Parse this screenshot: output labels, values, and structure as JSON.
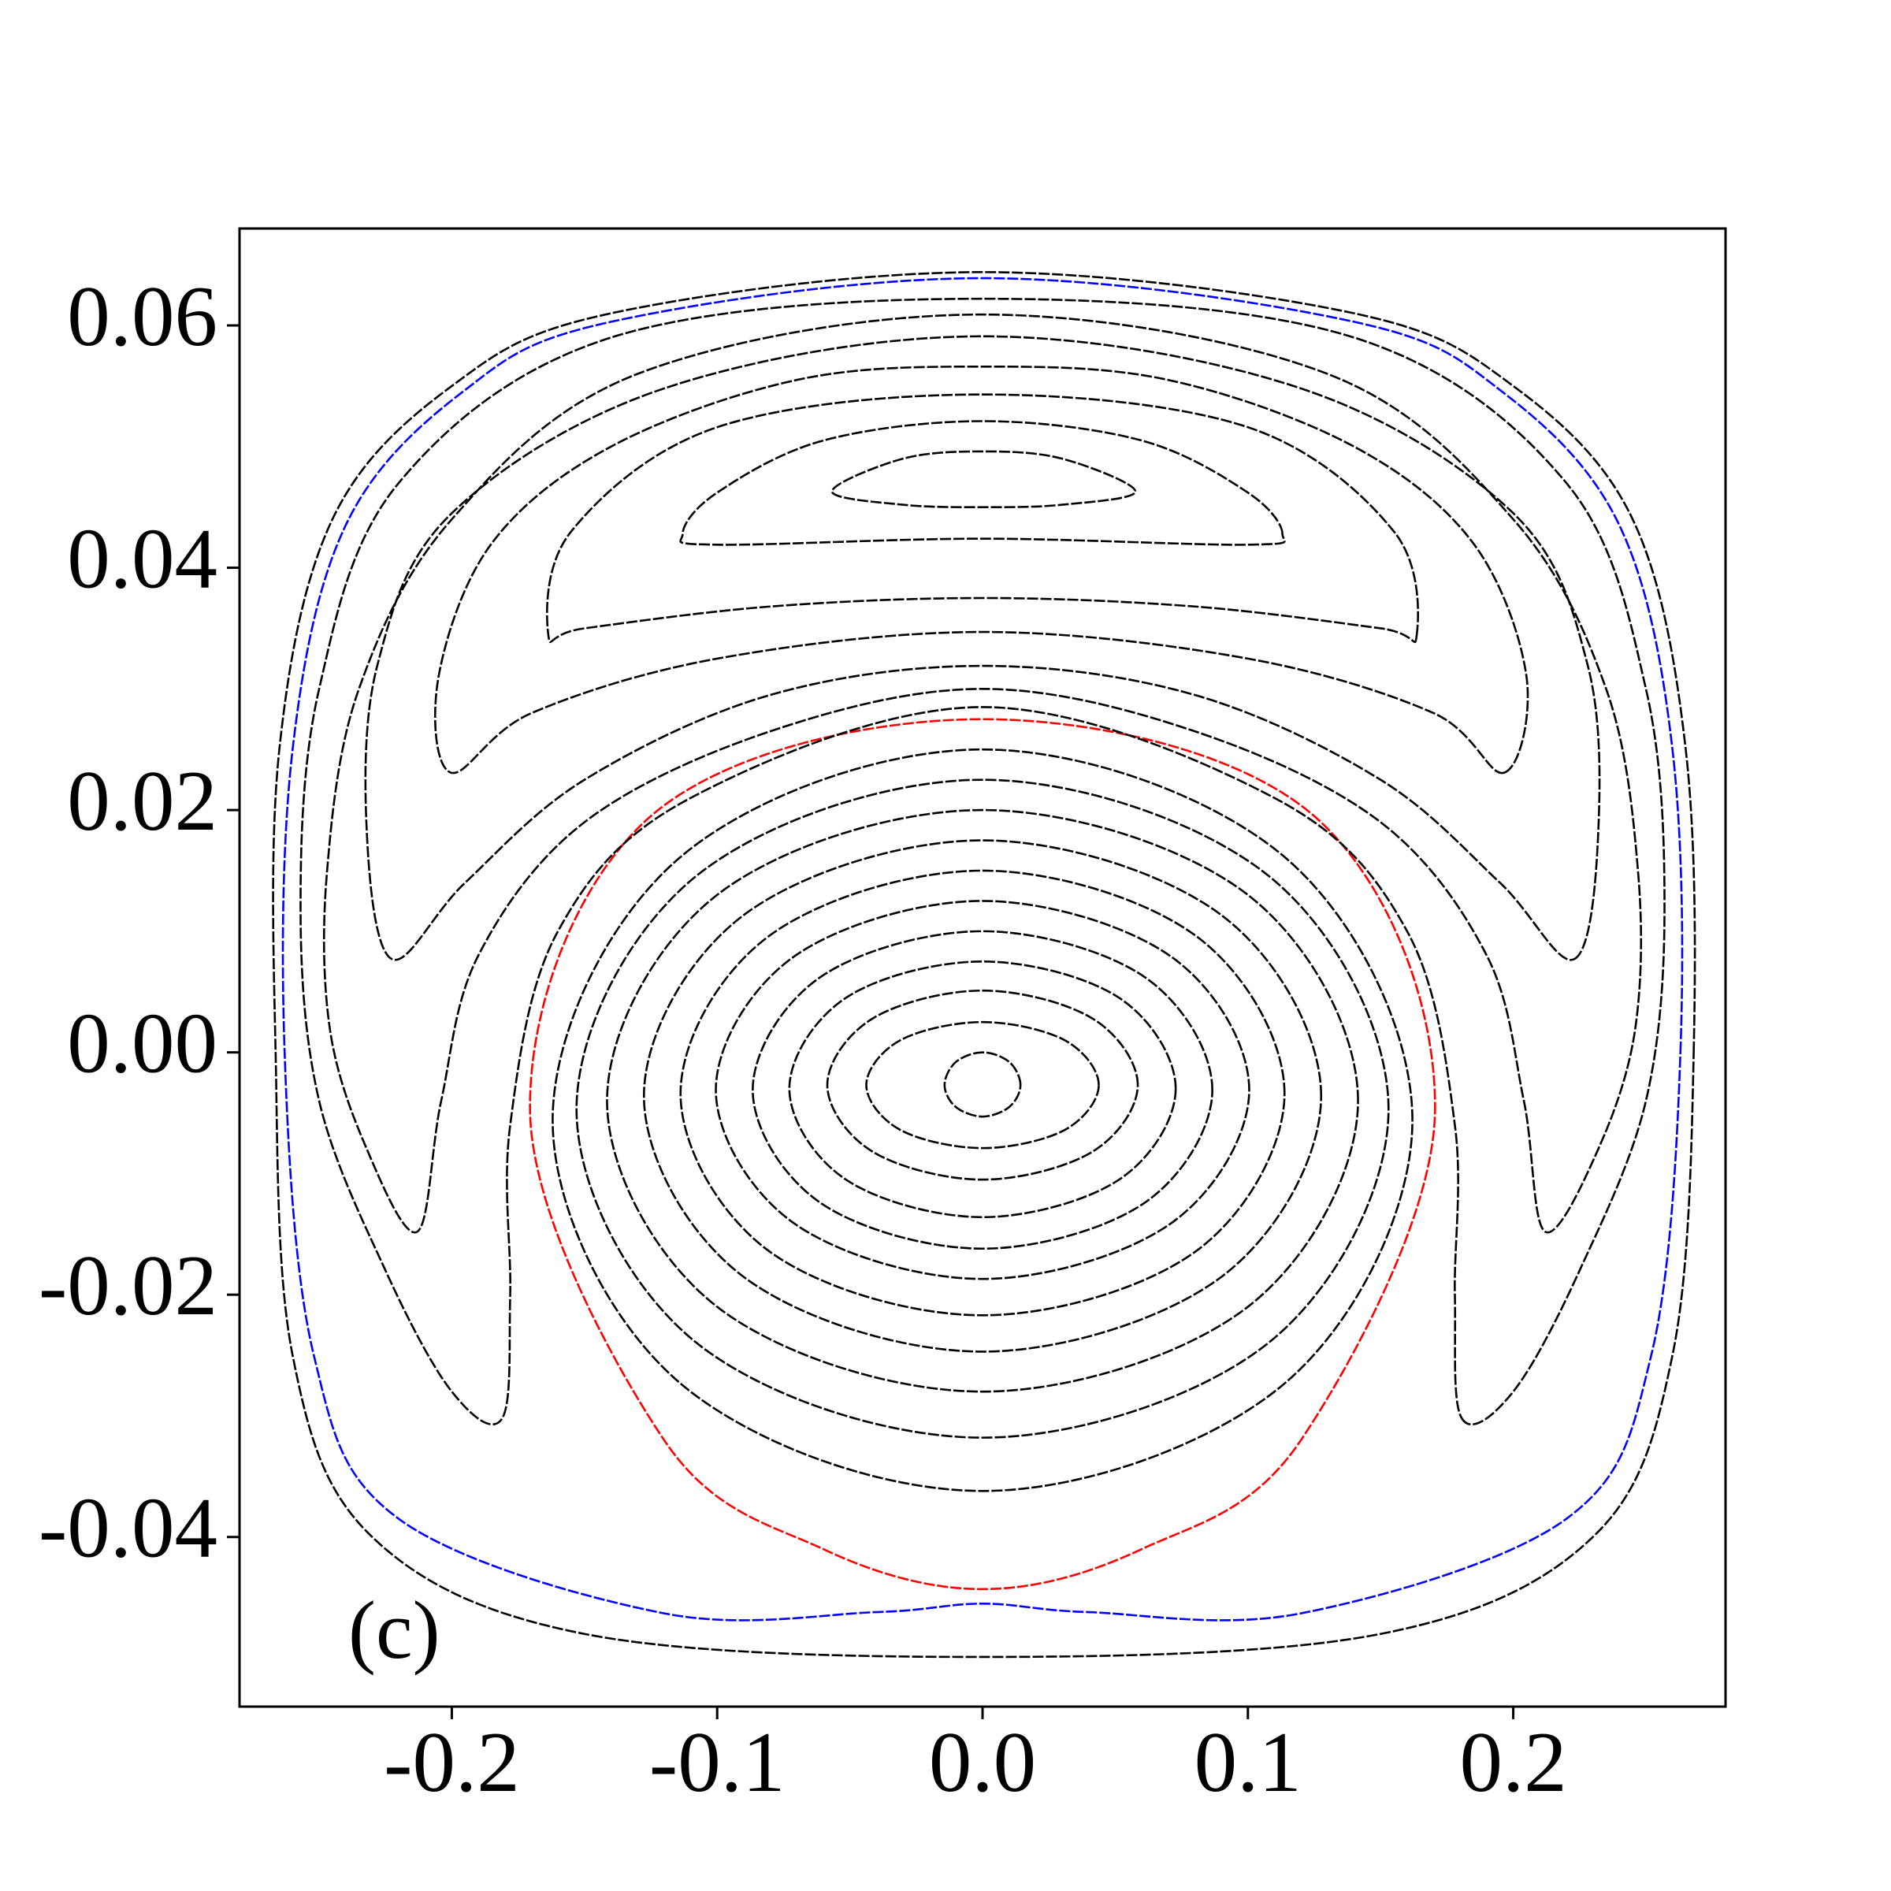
{
  "chart_data": {
    "type": "line",
    "closed_curves": true,
    "annotation": "(c)",
    "xlim": [
      -0.28,
      0.28
    ],
    "ylim": [
      -0.054,
      0.068
    ],
    "xticks": [
      -0.2,
      -0.1,
      {
        "value": 0,
        "label": "0.0"
      },
      0.1,
      0.2
    ],
    "yticks": [
      -0.04,
      -0.02,
      {
        "value": 0,
        "label": "0.00"
      },
      0.02,
      0.04,
      0.06
    ],
    "series": [
      {
        "color": "#000000",
        "x": [
          0.0143,
          0.0101,
          0,
          -0.0101,
          -0.0143,
          -0.0101,
          0,
          0.0101
        ],
        "y": [
          -0.0027,
          -0.0008,
          0,
          -0.0008,
          -0.0027,
          -0.0045,
          -0.0053,
          -0.0045
        ]
      },
      {
        "color": "#000000",
        "x": [
          0.0438,
          0.031,
          0,
          -0.031,
          -0.0438,
          -0.031,
          0,
          0.031
        ],
        "y": [
          -0.0027,
          0.001,
          0.0025,
          0.001,
          -0.0027,
          -0.0064,
          -0.0079,
          -0.0064
        ]
      },
      {
        "color": "#000000",
        "x": [
          0.0585,
          0.0414,
          0,
          -0.0414,
          -0.0585,
          -0.0414,
          0,
          0.0414
        ],
        "y": [
          -0.0027,
          0.0028,
          0.0051,
          0.0028,
          -0.0027,
          -0.0082,
          -0.0105,
          -0.0082
        ]
      },
      {
        "color": "#000000",
        "x": [
          0.0728,
          0.0515,
          0,
          -0.0515,
          -0.0728,
          -0.0515,
          0,
          0.0515
        ],
        "y": [
          -0.003,
          0.0045,
          0.0075,
          0.0045,
          -0.003,
          -0.0105,
          -0.0136,
          -0.0105
        ]
      },
      {
        "color": "#000000",
        "x": [
          0.0866,
          0.0612,
          0,
          -0.0612,
          -0.0866,
          -0.0612,
          0,
          0.0612
        ],
        "y": [
          -0.0031,
          0.0062,
          0.01,
          0.0062,
          -0.0031,
          -0.0124,
          -0.0162,
          -0.0124
        ]
      },
      {
        "color": "#000000",
        "x": [
          0.1005,
          0.0711,
          0,
          -0.0711,
          -0.1005,
          -0.0711,
          0,
          0.0711
        ],
        "y": [
          -0.0031,
          0.0079,
          0.0125,
          0.0079,
          -0.0031,
          -0.0141,
          -0.0187,
          -0.0141
        ]
      },
      {
        "color": "#000000",
        "x": [
          0.1138,
          0.0805,
          0,
          -0.0805,
          -0.1138,
          -0.0805,
          0,
          0.0805
        ],
        "y": [
          -0.0034,
          0.0096,
          0.015,
          0.0096,
          -0.0034,
          -0.0164,
          -0.0217,
          -0.0164
        ]
      },
      {
        "color": "#000000",
        "x": [
          0.1276,
          0.0902,
          0,
          -0.0902,
          -0.1276,
          -0.0902,
          0,
          0.0902
        ],
        "y": [
          -0.0036,
          0.0113,
          0.0175,
          0.0113,
          -0.0036,
          -0.0185,
          -0.0247,
          -0.0185
        ]
      },
      {
        "color": "#000000",
        "x": [
          0.1415,
          0.1,
          0,
          -0.1,
          -0.1415,
          -0.1,
          0,
          0.1
        ],
        "y": [
          -0.004,
          0.013,
          0.02,
          0.013,
          -0.004,
          -0.021,
          -0.028,
          -0.021
        ]
      },
      {
        "color": "#000000",
        "x": [
          0.153,
          0.1082,
          0,
          -0.1082,
          -0.153,
          -0.1082,
          0,
          0.1082
        ],
        "y": [
          -0.0047,
          0.0145,
          0.0225,
          0.0145,
          -0.0047,
          -0.0239,
          -0.0318,
          -0.0239
        ]
      },
      {
        "color": "#000000",
        "x": [
          0.162,
          0.1145,
          0,
          -0.1145,
          -0.162,
          -0.1145,
          0,
          0.1145
        ],
        "y": [
          -0.0056,
          0.016,
          0.025,
          0.016,
          -0.0056,
          -0.0272,
          -0.0362,
          -0.0272
        ]
      },
      {
        "color": "#ff0000",
        "x": [
          0.1705,
          0.125,
          0,
          -0.125,
          -0.1705,
          -0.12,
          -0.06,
          0,
          0.06,
          0.12
        ],
        "y": [
          -0.005,
          0.0195,
          0.0275,
          0.0195,
          -0.005,
          -0.032,
          -0.041,
          -0.0443,
          -0.041,
          -0.032
        ]
      },
      {
        "color": "#000000",
        "x": [
          0.0576,
          0.03,
          0,
          -0.03,
          -0.0567,
          -0.03,
          0,
          0.03
        ],
        "y": [
          0.0463,
          0.049,
          0.0496,
          0.049,
          0.0463,
          0.0452,
          0.045,
          0.0452
        ]
      },
      {
        "color": "#000000",
        "x": [
          0.113,
          0.1,
          0.06,
          0,
          -0.06,
          -0.1,
          -0.113,
          -0.1,
          0,
          0.1
        ],
        "y": [
          0.0428,
          0.0462,
          0.0505,
          0.0521,
          0.0505,
          0.0462,
          0.0428,
          0.0419,
          0.0424,
          0.0419
        ]
      },
      {
        "color": "#000000",
        "x": [
          0.1636,
          0.155,
          0.1,
          0,
          -0.1,
          -0.155,
          -0.1636,
          -0.15,
          -0.08,
          0,
          0.08,
          0.15
        ],
        "y": [
          0.0344,
          0.043,
          0.0516,
          0.0543,
          0.0516,
          0.043,
          0.0344,
          0.035,
          0.0368,
          0.0375,
          0.0368,
          0.035
        ]
      },
      {
        "color": "#000000",
        "x": [
          0.1968,
          0.205,
          0.185,
          0.14,
          0.07,
          0,
          -0.07,
          -0.14,
          -0.185,
          -0.205,
          -0.2005,
          -0.17,
          -0.1,
          0,
          0.1,
          0.17
        ],
        "y": [
          0.0231,
          0.031,
          0.042,
          0.05,
          0.0555,
          0.0566,
          0.0555,
          0.05,
          0.042,
          0.031,
          0.0231,
          0.028,
          0.0325,
          0.0347,
          0.0325,
          0.028
        ]
      },
      {
        "color": "#000000",
        "x": [
          0.223,
          0.232,
          0.228,
          0.2,
          0.12,
          0,
          -0.12,
          -0.2,
          -0.228,
          -0.232,
          -0.2226,
          -0.195,
          -0.15,
          -0.08,
          0,
          0.08,
          0.15,
          0.195
        ],
        "y": [
          0.0077,
          0.018,
          0.032,
          0.0445,
          0.0548,
          0.0591,
          0.0548,
          0.0445,
          0.032,
          0.018,
          0.0077,
          0.014,
          0.0225,
          0.0295,
          0.0319,
          0.0295,
          0.0225,
          0.014
        ]
      },
      {
        "color": "#000000",
        "x": [
          0.212,
          0.232,
          0.246,
          0.247,
          0.235,
          0.2,
          0.13,
          0,
          -0.13,
          -0.2,
          -0.235,
          -0.247,
          -0.246,
          -0.232,
          -0.213,
          -0.204,
          -0.19,
          -0.15,
          -0.08,
          0,
          0.08,
          0.15,
          0.19,
          0.204
        ],
        "y": [
          -0.0148,
          -0.008,
          0.002,
          0.015,
          0.03,
          0.044,
          0.056,
          0.0609,
          0.056,
          0.044,
          0.03,
          0.015,
          0.002,
          -0.008,
          -0.0148,
          -0.004,
          0.008,
          0.019,
          0.0265,
          0.03,
          0.0265,
          0.019,
          0.008,
          -0.004
        ]
      },
      {
        "color": "#000000",
        "x": [
          0.1806,
          0.2,
          0.225,
          0.25,
          0.257,
          0.25,
          0.22,
          0.14,
          0,
          -0.14,
          -0.22,
          -0.25,
          -0.257,
          -0.25,
          -0.225,
          -0.2,
          -0.181,
          -0.178,
          -0.178,
          -0.16,
          -0.11,
          0,
          0.11,
          0.16,
          0.178,
          0.178
        ],
        "y": [
          -0.0302,
          -0.028,
          -0.018,
          -0.004,
          0.012,
          0.03,
          0.047,
          0.059,
          0.0622,
          0.059,
          0.047,
          0.03,
          0.012,
          -0.004,
          -0.018,
          -0.028,
          -0.0302,
          -0.02,
          -0.006,
          0.01,
          0.021,
          0.0285,
          0.021,
          0.01,
          -0.006,
          -0.02
        ]
      },
      {
        "color": "#000000",
        "x": [
          0.268,
          0.265,
          0.245,
          0.2,
          0.14,
          0,
          -0.14,
          -0.2,
          -0.245,
          -0.265,
          -0.2664,
          -0.26,
          -0.23,
          -0.15,
          0,
          0.15,
          0.23,
          0.26
        ],
        "y": [
          0,
          0.025,
          0.044,
          0.055,
          0.061,
          0.0644,
          0.061,
          0.055,
          0.044,
          0.025,
          0,
          -0.025,
          -0.04,
          -0.048,
          -0.0499,
          -0.048,
          -0.04,
          -0.025
        ]
      },
      {
        "color": "#0000ff",
        "x": [
          0.263,
          0.26,
          0.24,
          0.196,
          0.14,
          0,
          -0.14,
          -0.196,
          -0.24,
          -0.26,
          -0.263,
          -0.252,
          -0.22,
          -0.12,
          -0.04,
          0,
          0.04,
          0.12,
          0.22,
          0.252
        ],
        "y": [
          0,
          0.025,
          0.0435,
          0.0545,
          0.0603,
          0.0639,
          0.0603,
          0.0545,
          0.0435,
          0.025,
          0,
          -0.025,
          -0.0385,
          -0.0463,
          -0.0462,
          -0.0455,
          -0.0462,
          -0.0463,
          -0.0385,
          -0.025
        ]
      }
    ]
  }
}
